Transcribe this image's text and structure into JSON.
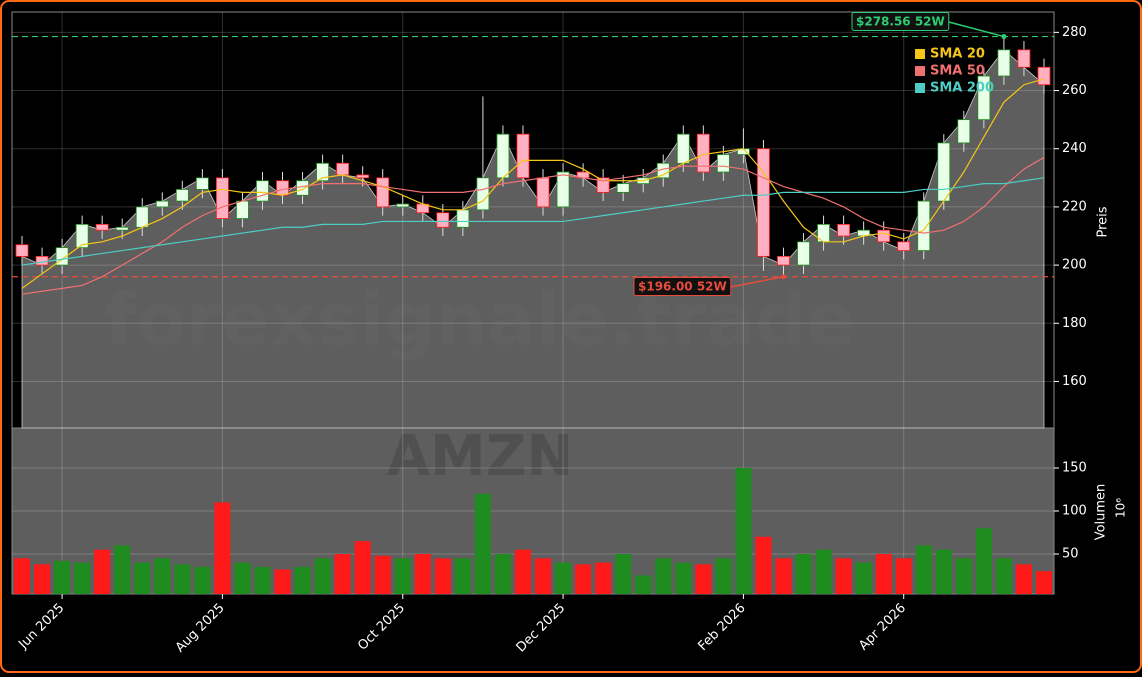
{
  "chart_data": {
    "type": "candlestick",
    "watermark": "forexsignale.trade",
    "symbol": "AMZN",
    "categories": [
      null,
      null,
      "Jun 2025",
      null,
      null,
      null,
      null,
      null,
      null,
      null,
      "Aug 2025",
      null,
      null,
      null,
      null,
      null,
      null,
      null,
      null,
      "Oct 2025",
      null,
      null,
      null,
      null,
      null,
      null,
      null,
      "Dec 2025",
      null,
      null,
      null,
      null,
      null,
      null,
      null,
      null,
      "Feb 2026",
      null,
      null,
      null,
      null,
      null,
      null,
      null,
      "Apr 2026",
      null,
      null,
      null,
      null,
      null,
      null,
      null
    ],
    "open": [
      207,
      203,
      200,
      206,
      214,
      212,
      213,
      220,
      222,
      226,
      230,
      216,
      222,
      229,
      224,
      229,
      235,
      231,
      230,
      220,
      221,
      218,
      213,
      219,
      230,
      245,
      230,
      220,
      232,
      230,
      225,
      228,
      230,
      235,
      245,
      232,
      238,
      240,
      203,
      200,
      208,
      214,
      210,
      212,
      208,
      205,
      222,
      242,
      250,
      265,
      274,
      268
    ],
    "high": [
      210,
      206,
      209,
      217,
      217,
      216,
      223,
      225,
      229,
      233,
      233,
      225,
      232,
      232,
      232,
      238,
      238,
      234,
      233,
      224,
      224,
      221,
      222,
      258,
      248,
      248,
      233,
      235,
      235,
      233,
      231,
      233,
      238,
      248,
      248,
      241,
      247,
      243,
      206,
      211,
      217,
      217,
      215,
      215,
      211,
      225,
      245,
      253,
      268,
      278.56,
      277,
      271
    ],
    "low": [
      200,
      197,
      197,
      203,
      209,
      209,
      210,
      217,
      219,
      223,
      213,
      213,
      219,
      221,
      221,
      226,
      228,
      227,
      217,
      217,
      215,
      210,
      210,
      216,
      227,
      227,
      217,
      217,
      227,
      222,
      222,
      225,
      227,
      232,
      229,
      229,
      235,
      198,
      196,
      197,
      205,
      207,
      207,
      205,
      202,
      202,
      219,
      239,
      247,
      262,
      265,
      259
    ],
    "close": [
      203,
      200,
      206,
      214,
      212,
      213,
      220,
      222,
      226,
      230,
      216,
      222,
      229,
      224,
      229,
      235,
      231,
      230,
      220,
      221,
      218,
      213,
      219,
      230,
      245,
      230,
      220,
      232,
      230,
      225,
      228,
      230,
      235,
      245,
      232,
      238,
      240,
      203,
      200,
      208,
      214,
      210,
      212,
      208,
      205,
      222,
      242,
      250,
      265,
      274,
      268,
      262
    ],
    "volume": [
      45,
      38,
      42,
      40,
      55,
      60,
      40,
      45,
      38,
      35,
      110,
      40,
      35,
      32,
      35,
      45,
      50,
      65,
      48,
      45,
      50,
      45,
      45,
      120,
      50,
      55,
      45,
      40,
      38,
      40,
      50,
      25,
      45,
      40,
      38,
      45,
      150,
      70,
      45,
      50,
      55,
      45,
      40,
      50,
      45,
      60,
      55,
      45,
      80,
      45,
      38,
      30
    ],
    "up_color": "#1e8c1e",
    "down_color": "#ff1a1a",
    "area_color": "#6e6e6e",
    "series": [
      {
        "name": "SMA 20",
        "color": "#f5c518",
        "values": [
          192,
          197,
          202,
          207,
          208,
          210,
          213,
          216,
          220,
          225,
          226,
          225,
          225,
          224,
          226,
          230,
          231,
          229,
          227,
          224,
          221,
          219,
          219,
          222,
          230,
          236,
          236,
          236,
          233,
          229,
          229,
          229,
          231,
          235,
          238,
          239,
          240,
          232,
          222,
          213,
          208,
          208,
          210,
          211,
          209,
          212,
          222,
          232,
          244,
          256,
          262,
          264
        ]
      },
      {
        "name": "SMA 50",
        "color": "#f07070",
        "values": [
          190,
          191,
          192,
          193,
          196,
          200,
          204,
          208,
          213,
          217,
          220,
          222,
          224,
          226,
          227,
          228,
          228,
          228,
          227,
          226,
          225,
          225,
          225,
          226,
          228,
          229,
          230,
          231,
          230,
          229,
          230,
          231,
          233,
          234,
          234,
          234,
          233,
          230,
          227,
          225,
          223,
          220,
          216,
          213,
          212,
          211,
          212,
          215,
          220,
          227,
          233,
          237
        ]
      },
      {
        "name": "SMA 200",
        "color": "#4ecdc4",
        "values": [
          200,
          201,
          202,
          203,
          204,
          205,
          206,
          207,
          208,
          209,
          210,
          211,
          212,
          213,
          213,
          214,
          214,
          214,
          215,
          215,
          215,
          215,
          215,
          215,
          215,
          215,
          215,
          215,
          216,
          217,
          218,
          219,
          220,
          221,
          222,
          223,
          224,
          224,
          225,
          225,
          225,
          225,
          225,
          225,
          225,
          226,
          226,
          227,
          228,
          228,
          229,
          230
        ]
      }
    ],
    "annotations": [
      {
        "label": "$278.56 52W",
        "value": 278.56,
        "color": "#2ecc71"
      },
      {
        "label": "$196.00 52W",
        "value": 196,
        "color": "#e74c3c"
      }
    ],
    "ylim": [
      144,
      287
    ],
    "yticks": [
      160,
      180,
      200,
      220,
      240,
      260,
      280
    ],
    "y_label": "Preis",
    "volume_ylim": [
      3.5,
      196.5
    ],
    "volume_yticks": [
      50,
      100,
      150
    ],
    "volume_label": "Volumen",
    "volume_exponent": "10⁶",
    "grid": true
  }
}
